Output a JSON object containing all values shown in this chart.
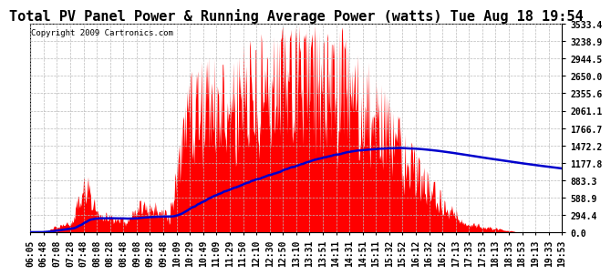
{
  "title": "Total PV Panel Power & Running Average Power (watts) Tue Aug 18 19:54",
  "copyright": "Copyright 2009 Cartronics.com",
  "y_max": 3533.4,
  "y_ticks": [
    0.0,
    294.4,
    588.9,
    883.3,
    1177.8,
    1472.2,
    1766.7,
    2061.1,
    2355.6,
    2650.0,
    2944.5,
    3238.9,
    3533.4
  ],
  "x_labels": [
    "06:05",
    "06:48",
    "07:08",
    "07:28",
    "07:48",
    "08:08",
    "08:28",
    "08:48",
    "09:08",
    "09:28",
    "09:48",
    "10:09",
    "10:29",
    "10:49",
    "11:09",
    "11:29",
    "11:50",
    "12:10",
    "12:30",
    "12:50",
    "13:10",
    "13:31",
    "13:51",
    "14:11",
    "14:31",
    "14:51",
    "15:11",
    "15:32",
    "15:52",
    "16:12",
    "16:32",
    "16:52",
    "17:13",
    "17:33",
    "17:53",
    "18:13",
    "18:33",
    "18:53",
    "19:13",
    "19:33",
    "19:53"
  ],
  "background_color": "#ffffff",
  "plot_bg_color": "#ffffff",
  "grid_color": "#bbbbbb",
  "bar_color": "#ff0000",
  "line_color": "#0000cc",
  "title_fontsize": 11,
  "tick_fontsize": 7,
  "copyright_fontsize": 6.5
}
